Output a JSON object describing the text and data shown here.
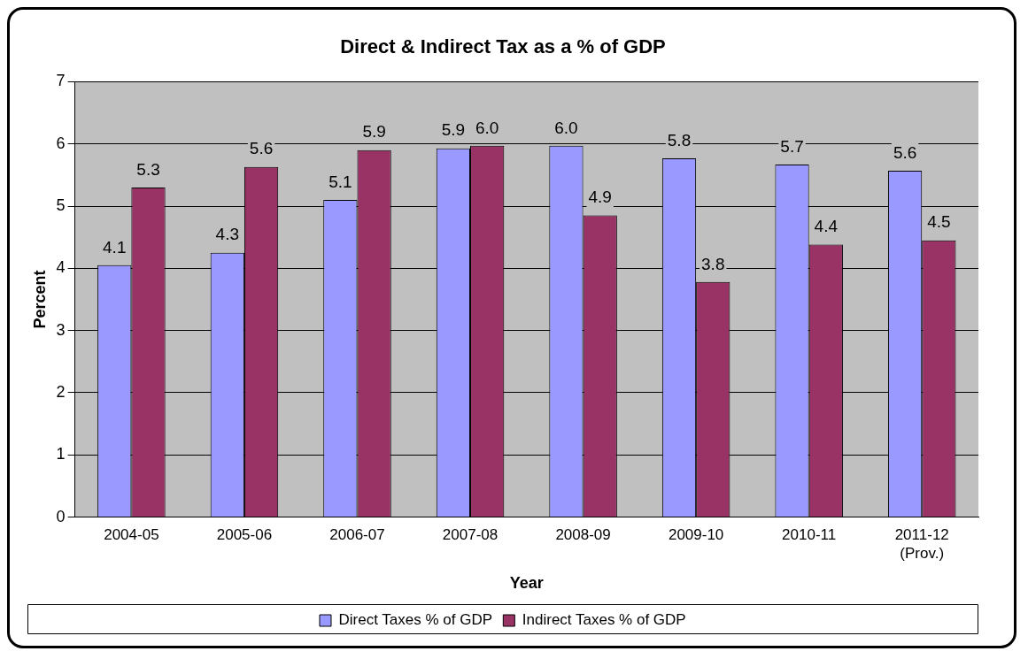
{
  "chart_data": {
    "type": "bar",
    "title": "Direct & Indirect Tax as a % of GDP",
    "xlabel": "Year",
    "ylabel": "Percent",
    "categories": [
      "2004-05",
      "2005-06",
      "2006-07",
      "2007-08",
      "2008-09",
      "2009-10",
      "2010-11",
      "2011-12 (Prov.)"
    ],
    "series": [
      {
        "name": "Direct Taxes % of GDP",
        "color": "#9999ff",
        "values": [
          4.05,
          4.25,
          5.1,
          5.93,
          5.97,
          5.77,
          5.67,
          5.57
        ],
        "value_labels": [
          "4.1",
          "4.3",
          "5.1",
          "5.9",
          "6.0",
          "5.8",
          "5.7",
          "5.6"
        ]
      },
      {
        "name": "Indirect Taxes % of GDP",
        "color": "#993366",
        "values": [
          5.3,
          5.63,
          5.9,
          5.97,
          4.85,
          3.78,
          4.38,
          4.45
        ],
        "value_labels": [
          "5.3",
          "5.6",
          "5.9",
          "6.0",
          "4.9",
          "3.8",
          "4.4",
          "4.5"
        ]
      }
    ],
    "ylim": [
      0,
      7
    ],
    "yticks": [
      0,
      1,
      2,
      3,
      4,
      5,
      6,
      7
    ],
    "grid": "y",
    "legend": "bottom"
  }
}
